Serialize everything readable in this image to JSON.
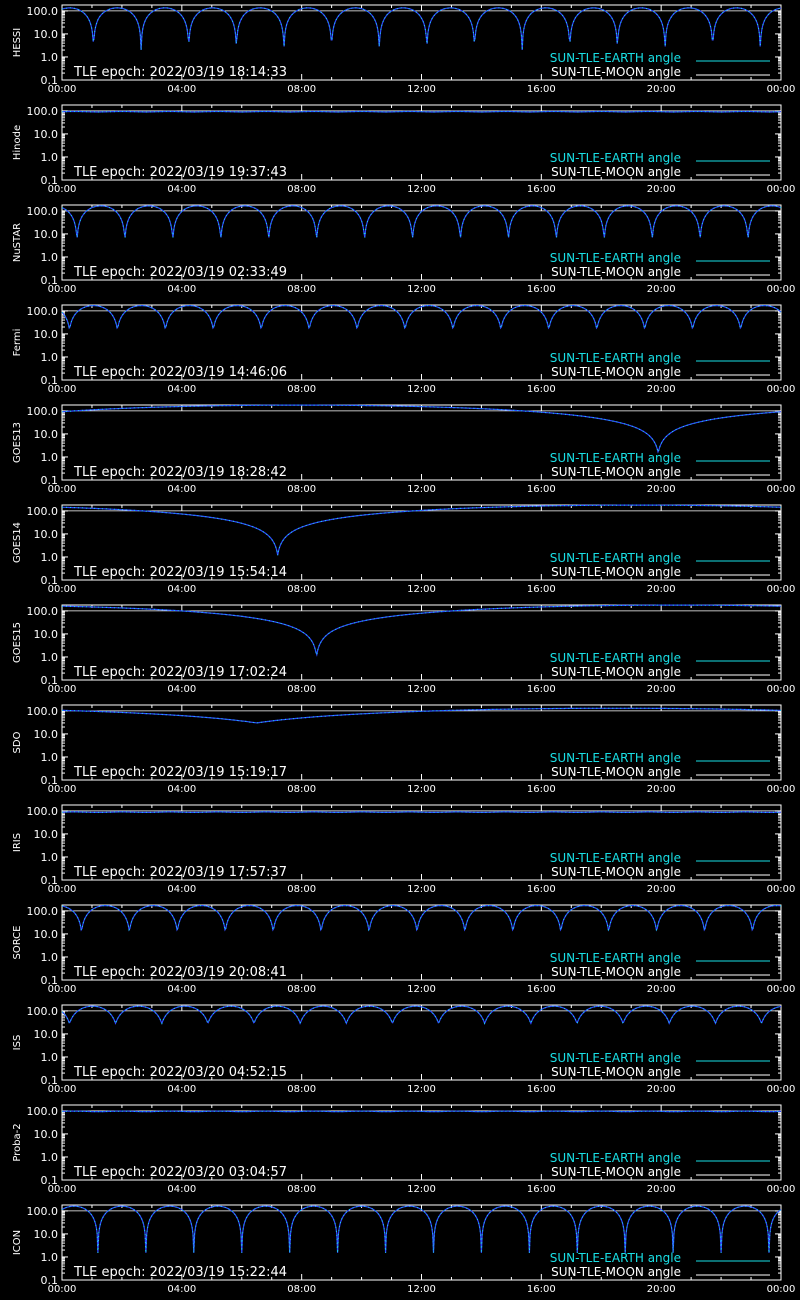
{
  "colors": {
    "background": "#000000",
    "axis": "#ffffff",
    "earth_line": "#2f4bff",
    "earth_highlight": "#19e0e6",
    "moon_line": "#ffffff",
    "earth_legend": "#19e0e6",
    "moon_legend": "#ffffff"
  },
  "chart_data": {
    "type": "line",
    "y_scale": "log",
    "ylim": [
      0.1,
      180
    ],
    "x_range_hours": [
      0,
      24
    ],
    "x_ticks": [
      "00:00",
      "04:00",
      "08:00",
      "12:00",
      "16:00",
      "20:00",
      "00:00"
    ],
    "y_ticks": [
      "100.0",
      "10.0",
      "1.0",
      "0.1"
    ],
    "legend": [
      "SUN-TLE-EARTH angle",
      "SUN-TLE-MOON angle"
    ],
    "moon_angle_deg": 100,
    "panels": [
      {
        "name": "HESSI",
        "epoch": "TLE epoch: 2022/03/19 18:14:33",
        "orbit": {
          "type": "leo",
          "period_h": 1.59,
          "min": 2.0,
          "max": 135,
          "minima_h": [
            1.05,
            2.64,
            4.23,
            5.82,
            7.41,
            9.0,
            10.59,
            12.18,
            13.77,
            15.36,
            16.95,
            18.54,
            20.13,
            21.72,
            23.31
          ]
        }
      },
      {
        "name": "Hinode",
        "epoch": "TLE epoch: 2022/03/19 19:37:43",
        "orbit": {
          "type": "flat",
          "value": 92
        }
      },
      {
        "name": "NuSTAR",
        "epoch": "TLE epoch: 2022/03/19 02:33:49",
        "orbit": {
          "type": "leo",
          "period_h": 1.6,
          "min": 5.0,
          "max": 165,
          "minima_h": [
            0.5,
            2.1,
            3.7,
            5.3,
            6.9,
            8.5,
            10.1,
            11.7,
            13.3,
            14.9,
            16.5,
            18.1,
            19.7,
            21.3,
            22.9
          ]
        }
      },
      {
        "name": "Fermi",
        "epoch": "TLE epoch: 2022/03/19 14:46:06",
        "orbit": {
          "type": "leo",
          "period_h": 1.6,
          "min": 15,
          "max": 170,
          "minima_h": [
            0.25,
            1.85,
            3.45,
            5.05,
            6.65,
            8.25,
            9.85,
            11.45,
            13.05,
            14.65,
            16.25,
            17.85,
            19.45,
            21.05,
            22.65
          ]
        }
      },
      {
        "name": "GOES13",
        "epoch": "TLE epoch: 2022/03/19 18:28:42",
        "orbit": {
          "type": "geo",
          "min_at_h": 19.9,
          "min": 1.5,
          "max": 178
        }
      },
      {
        "name": "GOES14",
        "epoch": "TLE epoch: 2022/03/19 15:54:14",
        "orbit": {
          "type": "geo",
          "min_at_h": 7.2,
          "min": 1.2,
          "max": 178
        }
      },
      {
        "name": "GOES15",
        "epoch": "TLE epoch: 2022/03/19 17:02:24",
        "orbit": {
          "type": "geo",
          "min_at_h": 8.5,
          "min": 1.1,
          "max": 178
        }
      },
      {
        "name": "SDO",
        "epoch": "TLE epoch: 2022/03/19 15:19:17",
        "orbit": {
          "type": "geo",
          "min_at_h": 6.5,
          "min": 30,
          "max": 130
        }
      },
      {
        "name": "IRIS",
        "epoch": "TLE epoch: 2022/03/19 17:57:37",
        "orbit": {
          "type": "flat",
          "value": 88
        }
      },
      {
        "name": "SORCE",
        "epoch": "TLE epoch: 2022/03/19 20:08:41",
        "orbit": {
          "type": "leo",
          "period_h": 1.6,
          "min": 12,
          "max": 170,
          "minima_h": [
            0.65,
            2.25,
            3.85,
            5.45,
            7.05,
            8.65,
            10.25,
            11.85,
            13.45,
            15.05,
            16.65,
            18.25,
            19.85,
            21.45,
            23.05
          ]
        }
      },
      {
        "name": "ISS",
        "epoch": "TLE epoch: 2022/03/20 04:52:15",
        "orbit": {
          "type": "leo",
          "period_h": 1.54,
          "min": 28,
          "max": 160,
          "minima_h": [
            0.25,
            1.79,
            3.33,
            4.87,
            6.41,
            7.95,
            9.49,
            11.03,
            12.57,
            14.11,
            15.65,
            17.19,
            18.73,
            20.27,
            21.81,
            23.35
          ]
        }
      },
      {
        "name": "Proba-2",
        "epoch": "TLE epoch: 2022/03/20 03:04:57",
        "orbit": {
          "type": "flat",
          "value": 95
        }
      },
      {
        "name": "ICON",
        "epoch": "TLE epoch: 2022/03/19 15:22:44",
        "orbit": {
          "type": "leo",
          "period_h": 1.6,
          "min": 1.5,
          "max": 160,
          "minima_h": [
            1.2,
            2.8,
            4.4,
            6.0,
            7.6,
            9.2,
            10.8,
            12.4,
            14.0,
            15.6,
            17.2,
            18.8,
            20.4,
            22.0,
            23.6
          ]
        }
      }
    ]
  }
}
